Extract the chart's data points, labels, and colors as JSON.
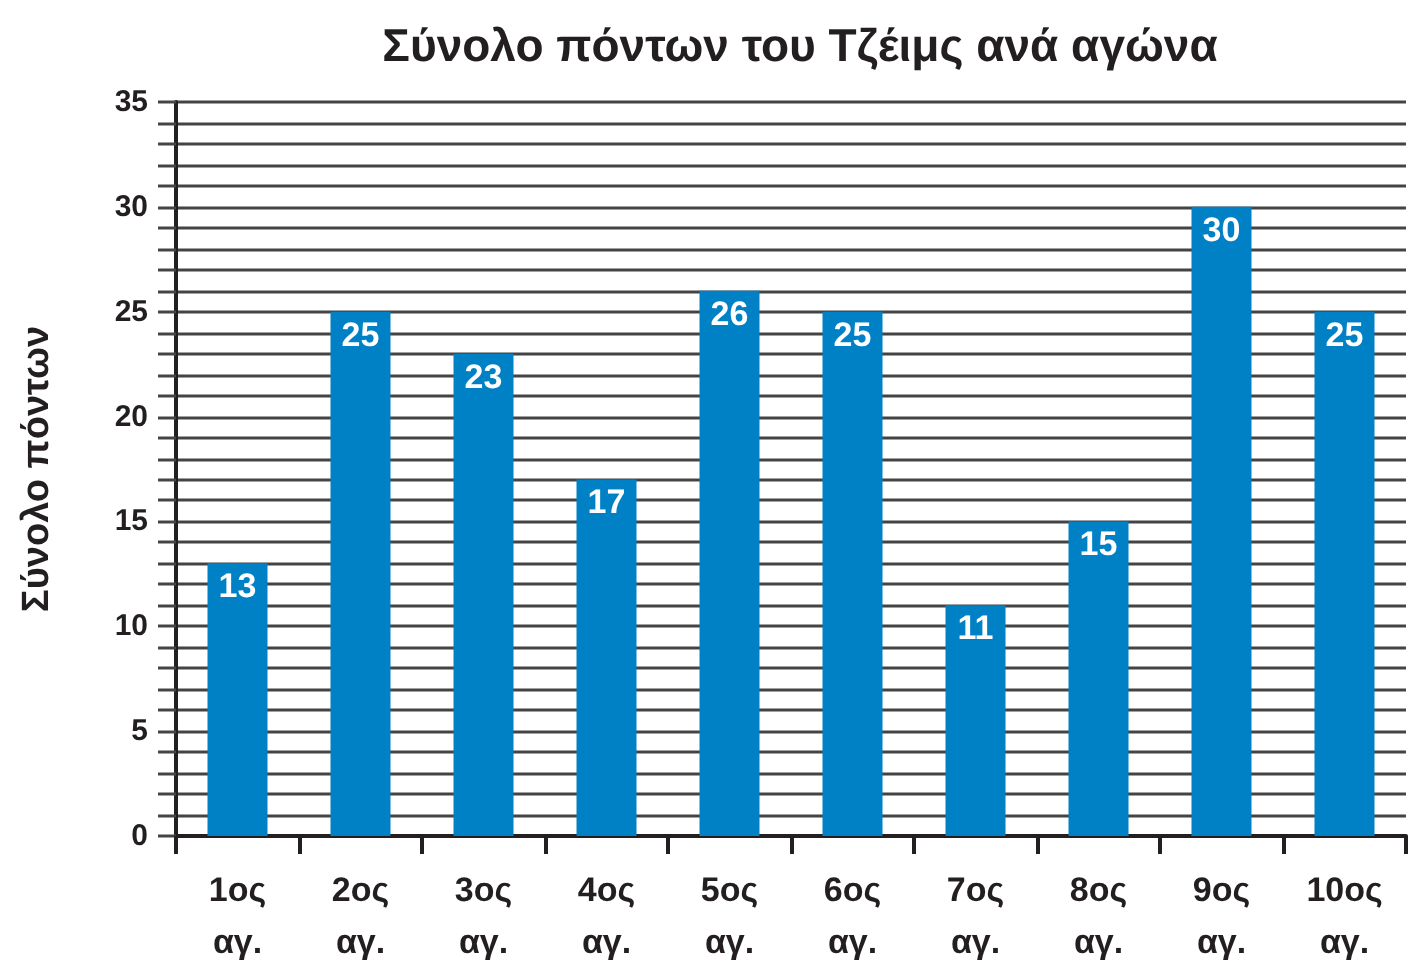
{
  "chart_data": {
    "type": "bar",
    "title": "Σύνολο πόντων του Τζέιμς ανά αγώνα",
    "ylabel": "Σύνολο πόντων",
    "categories": [
      "1ος αγ.",
      "2ος αγ.",
      "3ος αγ.",
      "4ος αγ.",
      "5ος αγ.",
      "6ος αγ.",
      "7ος αγ.",
      "8ος αγ.",
      "9ος αγ.",
      "10ος αγ."
    ],
    "values": [
      13,
      25,
      23,
      17,
      26,
      25,
      11,
      15,
      30,
      25
    ],
    "color": "#0081c6",
    "ylim": [
      0,
      35
    ],
    "yticks": [
      0,
      {
        "value": 1,
        "label": null
      },
      {
        "value": 2,
        "label": null
      },
      {
        "value": 3,
        "label": null
      },
      {
        "value": 4,
        "label": null
      },
      5,
      {
        "value": 6,
        "label": null
      },
      {
        "value": 7,
        "label": null
      },
      {
        "value": 8,
        "label": null
      },
      {
        "value": 9,
        "label": null
      },
      10,
      {
        "value": 11,
        "label": null
      },
      {
        "value": 12,
        "label": null
      },
      {
        "value": 13,
        "label": null
      },
      {
        "value": 14,
        "label": null
      },
      15,
      {
        "value": 16,
        "label": null
      },
      {
        "value": 17,
        "label": null
      },
      {
        "value": 18,
        "label": null
      },
      {
        "value": 19,
        "label": null
      },
      20,
      {
        "value": 21,
        "label": null
      },
      {
        "value": 22,
        "label": null
      },
      {
        "value": 23,
        "label": null
      },
      {
        "value": 24,
        "label": null
      },
      25,
      {
        "value": 26,
        "label": null
      },
      {
        "value": 27,
        "label": null
      },
      {
        "value": 28,
        "label": null
      },
      {
        "value": 29,
        "label": null
      },
      30,
      {
        "value": 31,
        "label": null
      },
      {
        "value": 32,
        "label": null
      },
      {
        "value": 33,
        "label": null
      },
      {
        "value": 34,
        "label": null
      },
      35
    ],
    "grid": "y",
    "data_labels": true
  }
}
